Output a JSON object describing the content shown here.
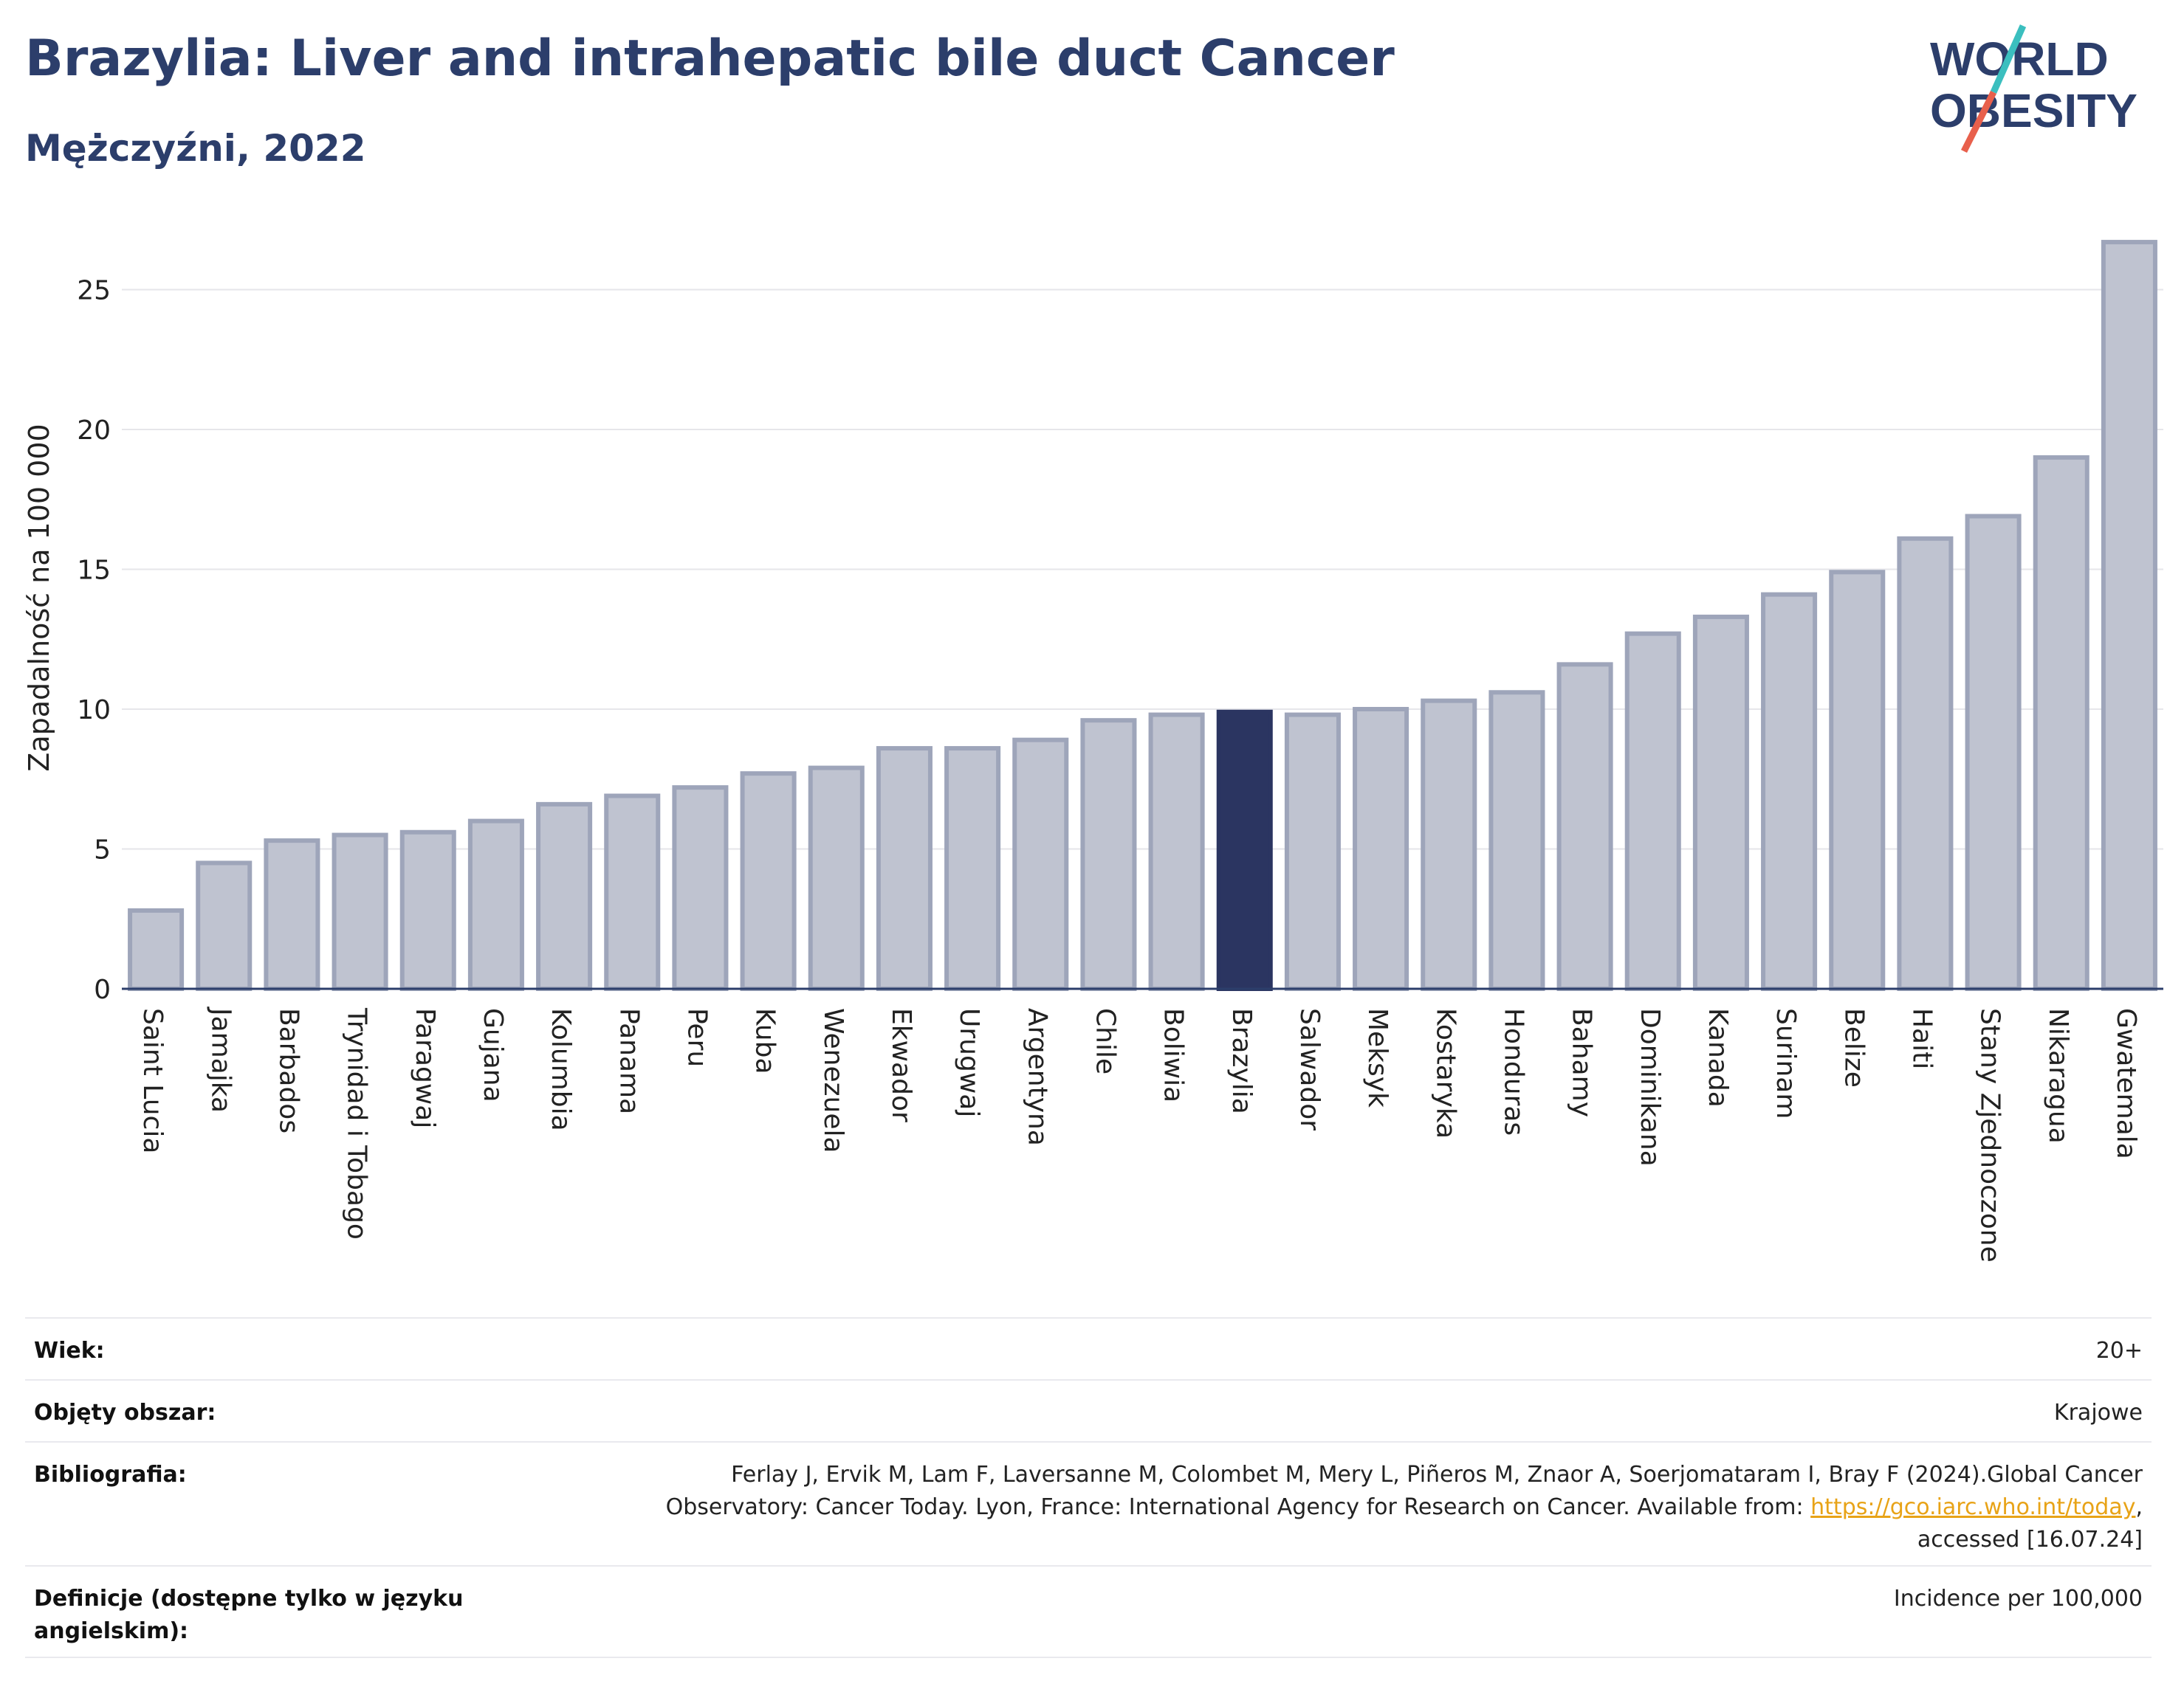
{
  "header": {
    "title": "Brazylia: Liver and intrahepatic bile duct Cancer",
    "subtitle": "Mężczyźni, 2022"
  },
  "logo": {
    "line1": "WORLD",
    "line2": "OBESITY",
    "accent_colors": [
      "#3bbfbf",
      "#e8604c"
    ]
  },
  "colors": {
    "bar": "#bfc3d0",
    "bar_border": "#9ea5ba",
    "highlight": "#2b3561",
    "axis": "#2c3e6b"
  },
  "chart_data": {
    "type": "bar",
    "title": "Brazylia: Liver and intrahepatic bile duct Cancer",
    "subtitle": "Mężczyźni, 2022",
    "ylabel": "Zapadalność na 100 000",
    "xlabel": "",
    "ylim": [
      0,
      27.5
    ],
    "yticks": [
      0,
      5,
      10,
      15,
      20,
      25
    ],
    "grid": true,
    "highlight": "Brazylia",
    "categories": [
      "Saint Lucia",
      "Jamajka",
      "Barbados",
      "Trynidad i Tobago",
      "Paragwaj",
      "Gujana",
      "Kolumbia",
      "Panama",
      "Peru",
      "Kuba",
      "Wenezuela",
      "Ekwador",
      "Urugwaj",
      "Argentyna",
      "Chile",
      "Boliwia",
      "Brazylia",
      "Salwador",
      "Meksyk",
      "Kostaryka",
      "Honduras",
      "Bahamy",
      "Dominikana",
      "Kanada",
      "Surinam",
      "Belize",
      "Haiti",
      "Stany Zjednoczone",
      "Nikaragua",
      "Gwatemala"
    ],
    "values": [
      2.8,
      4.5,
      5.3,
      5.5,
      5.6,
      6.0,
      6.6,
      6.9,
      7.2,
      7.7,
      7.9,
      8.6,
      8.6,
      8.9,
      9.6,
      9.8,
      9.9,
      9.8,
      10.0,
      10.3,
      10.6,
      11.6,
      12.7,
      13.3,
      14.1,
      14.9,
      16.1,
      16.9,
      19.0,
      26.7
    ]
  },
  "meta": [
    {
      "label": "Wiek:",
      "value": "20+"
    },
    {
      "label": "Objęty obszar:",
      "value": "Krajowe"
    },
    {
      "label": "Bibliografia:",
      "value_line1": "Ferlay J, Ervik M, Lam F, Laversanne M, Colombet M, Mery L, Piñeros M, Znaor A, Soerjomataram I, Bray F (2024).Global Cancer",
      "value_line2_pre": "Observatory: Cancer Today. Lyon, France: International Agency for Research on Cancer. Available from: ",
      "value_link": "https://gco.iarc.who.int/today",
      "value_line2_post": ",",
      "value_line3": "accessed [16.07.24]"
    },
    {
      "label": "Definicje (dostępne tylko w języku angielskim):",
      "value": "Incidence per 100,000"
    }
  ]
}
